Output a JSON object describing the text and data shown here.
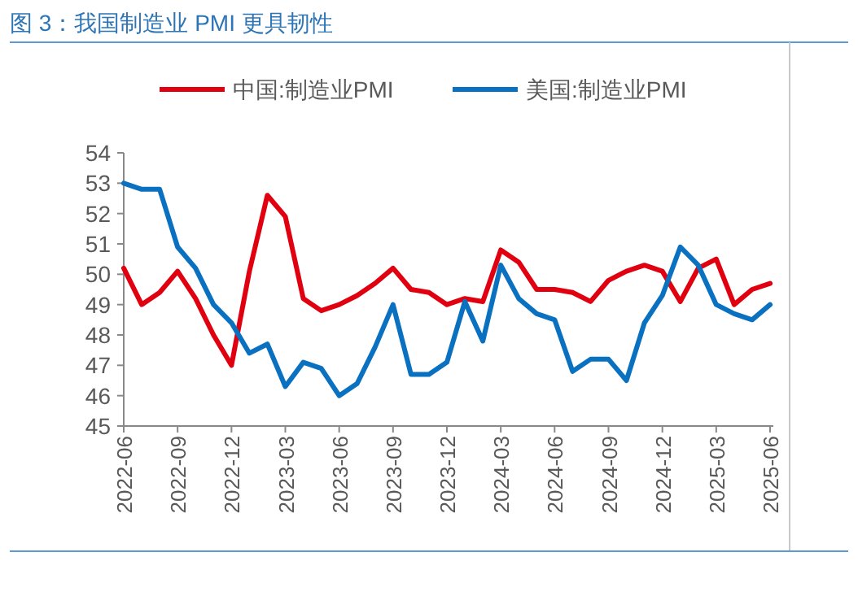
{
  "chart_data": {
    "type": "line",
    "title": "图 3：我国制造业 PMI 更具韧性",
    "x": [
      "2022-06",
      "2022-07",
      "2022-08",
      "2022-09",
      "2022-10",
      "2022-11",
      "2022-12",
      "2023-01",
      "2023-02",
      "2023-03",
      "2023-04",
      "2023-05",
      "2023-06",
      "2023-07",
      "2023-08",
      "2023-09",
      "2023-10",
      "2023-11",
      "2023-12",
      "2024-01",
      "2024-02",
      "2024-03",
      "2024-04",
      "2024-05",
      "2024-06",
      "2024-07",
      "2024-08",
      "2024-09",
      "2024-10",
      "2024-11",
      "2024-12",
      "2025-01",
      "2025-02",
      "2025-03",
      "2025-04",
      "2025-05",
      "2025-06"
    ],
    "series": [
      {
        "name": "中国:制造业PMI",
        "color": "#e0000f",
        "values": [
          50.2,
          49.0,
          49.4,
          50.1,
          49.2,
          48.0,
          47.0,
          50.1,
          52.6,
          51.9,
          49.2,
          48.8,
          49.0,
          49.3,
          49.7,
          50.2,
          49.5,
          49.4,
          49.0,
          49.2,
          49.1,
          50.8,
          50.4,
          49.5,
          49.5,
          49.4,
          49.1,
          49.8,
          50.1,
          50.3,
          50.1,
          49.1,
          50.2,
          50.5,
          49.0,
          49.5,
          49.7
        ]
      },
      {
        "name": "美国:制造业PMI",
        "color": "#0a70c0",
        "values": [
          53.0,
          52.8,
          52.8,
          50.9,
          50.2,
          49.0,
          48.4,
          47.4,
          47.7,
          46.3,
          47.1,
          46.9,
          46.0,
          46.4,
          47.6,
          49.0,
          46.7,
          46.7,
          47.1,
          49.1,
          47.8,
          50.3,
          49.2,
          48.7,
          48.5,
          46.8,
          47.2,
          47.2,
          46.5,
          48.4,
          49.3,
          50.9,
          50.3,
          49.0,
          48.7,
          48.5,
          49.0
        ]
      }
    ],
    "xlim": [
      "2022-06",
      "2025-06"
    ],
    "xticks": [
      "2022-06",
      "2022-09",
      "2022-12",
      "2023-03",
      "2023-06",
      "2023-09",
      "2023-12",
      "2024-03",
      "2024-06",
      "2024-09",
      "2024-12",
      "2025-03",
      "2025-06"
    ],
    "ylim": [
      45,
      54
    ],
    "yticks": [
      45,
      46,
      47,
      48,
      49,
      50,
      51,
      52,
      53,
      54
    ],
    "grid": false,
    "legend": "top",
    "marker": "none",
    "line_style": "solid"
  }
}
